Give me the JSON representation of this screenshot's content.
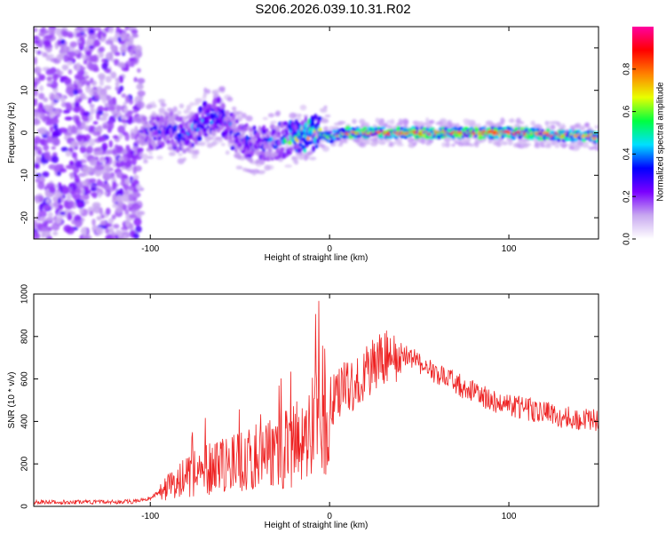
{
  "title": "S206.2026.039.10.31.R02",
  "chart_data": [
    {
      "type": "heatmap",
      "xlabel": "Height of straight line (km)",
      "ylabel": "Frequency (Hz)",
      "xlim": [
        -165,
        150
      ],
      "ylim": [
        -25,
        25
      ],
      "xticks": [
        -100,
        0,
        100
      ],
      "yticks": [
        -20,
        -10,
        0,
        10,
        20
      ],
      "colorbar": {
        "label": "Normalized spectral amplitude",
        "range": [
          0.0,
          1.0
        ],
        "ticks": [
          0.0,
          0.2,
          0.4,
          0.6,
          0.8
        ],
        "colors": [
          "#ffffff",
          "#c8a8f0",
          "#7a00ff",
          "#0000ff",
          "#00e0ff",
          "#00ff40",
          "#e8ff00",
          "#ff8000",
          "#ff0000",
          "#ff00a0"
        ]
      },
      "ridge": {
        "description_points_x": [
          -165,
          -100,
          -90,
          -80,
          -70,
          -60,
          -50,
          -40,
          -30,
          -20,
          -10,
          0,
          10,
          50,
          100,
          150
        ],
        "center_freq": [
          0,
          0,
          1,
          -1,
          3,
          4,
          -2,
          -3,
          -2,
          -1,
          0,
          -1,
          0,
          0,
          0,
          -1
        ],
        "peak_amplitude": [
          0.1,
          0.3,
          0.35,
          0.4,
          0.45,
          0.4,
          0.35,
          0.35,
          0.4,
          0.6,
          0.8,
          0.6,
          0.85,
          0.9,
          0.9,
          0.8
        ]
      }
    },
    {
      "type": "line",
      "xlabel": "Height of straight line (km)",
      "ylabel": "SNR (10 * v/v)",
      "xlim": [
        -165,
        150
      ],
      "ylim": [
        0,
        1000
      ],
      "xticks": [
        -100,
        0,
        100
      ],
      "yticks": [
        0,
        200,
        400,
        600,
        800,
        1000
      ],
      "series": [
        {
          "name": "SNR",
          "color": "#ee2222",
          "envelope_x": [
            -165,
            -140,
            -110,
            -100,
            -90,
            -80,
            -70,
            -60,
            -50,
            -40,
            -30,
            -20,
            -15,
            -12,
            -10,
            0,
            10,
            20,
            30,
            40,
            50,
            60,
            70,
            80,
            90,
            100,
            110,
            120,
            130,
            140,
            150
          ],
          "envelope_y": [
            20,
            20,
            22,
            40,
            90,
            140,
            170,
            190,
            210,
            230,
            260,
            280,
            330,
            300,
            380,
            500,
            560,
            630,
            700,
            720,
            680,
            620,
            580,
            540,
            500,
            480,
            460,
            440,
            420,
            410,
            400
          ]
        }
      ]
    }
  ]
}
